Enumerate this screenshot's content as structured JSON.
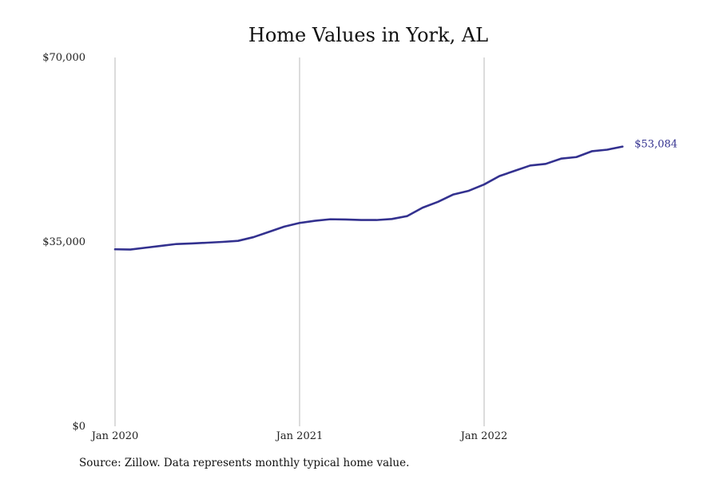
{
  "chart_data": {
    "type": "line",
    "title": "Home Values in York, AL",
    "xlabel": "",
    "ylabel": "",
    "ylim": [
      0,
      70000
    ],
    "y_ticks": [
      {
        "value": 0,
        "label": "$0"
      },
      {
        "value": 35000,
        "label": "$35,000"
      },
      {
        "value": 70000,
        "label": "$70,000"
      }
    ],
    "x_ticks": [
      {
        "value": "2020-01",
        "label": "Jan 2020"
      },
      {
        "value": "2021-01",
        "label": "Jan 2021"
      },
      {
        "value": "2022-01",
        "label": "Jan 2022"
      }
    ],
    "grid": "vertical lines at x ticks",
    "series": [
      {
        "color": "#33318f",
        "end_label": "$53,084",
        "points": [
          {
            "x": "2020-01",
            "y": 33600
          },
          {
            "x": "2020-02",
            "y": 33550
          },
          {
            "x": "2020-03",
            "y": 33900
          },
          {
            "x": "2020-04",
            "y": 34250
          },
          {
            "x": "2020-05",
            "y": 34600
          },
          {
            "x": "2020-06",
            "y": 34700
          },
          {
            "x": "2020-07",
            "y": 34850
          },
          {
            "x": "2020-08",
            "y": 35000
          },
          {
            "x": "2020-09",
            "y": 35200
          },
          {
            "x": "2020-10",
            "y": 35900
          },
          {
            "x": "2020-11",
            "y": 36900
          },
          {
            "x": "2020-12",
            "y": 37900
          },
          {
            "x": "2021-01",
            "y": 38600
          },
          {
            "x": "2021-02",
            "y": 39000
          },
          {
            "x": "2021-03",
            "y": 39300
          },
          {
            "x": "2021-04",
            "y": 39250
          },
          {
            "x": "2021-05",
            "y": 39150
          },
          {
            "x": "2021-06",
            "y": 39150
          },
          {
            "x": "2021-07",
            "y": 39350
          },
          {
            "x": "2021-08",
            "y": 39900
          },
          {
            "x": "2021-09",
            "y": 41500
          },
          {
            "x": "2021-10",
            "y": 42600
          },
          {
            "x": "2021-11",
            "y": 44000
          },
          {
            "x": "2021-12",
            "y": 44700
          },
          {
            "x": "2022-01",
            "y": 45900
          },
          {
            "x": "2022-02",
            "y": 47500
          },
          {
            "x": "2022-03",
            "y": 48500
          },
          {
            "x": "2022-04",
            "y": 49500
          },
          {
            "x": "2022-05",
            "y": 49800
          },
          {
            "x": "2022-06",
            "y": 50800
          },
          {
            "x": "2022-07",
            "y": 51100
          },
          {
            "x": "2022-08",
            "y": 52200
          },
          {
            "x": "2022-09",
            "y": 52500
          },
          {
            "x": "2022-10",
            "y": 53084
          }
        ]
      }
    ]
  },
  "source_note": "Source: Zillow. Data represents monthly typical home value."
}
